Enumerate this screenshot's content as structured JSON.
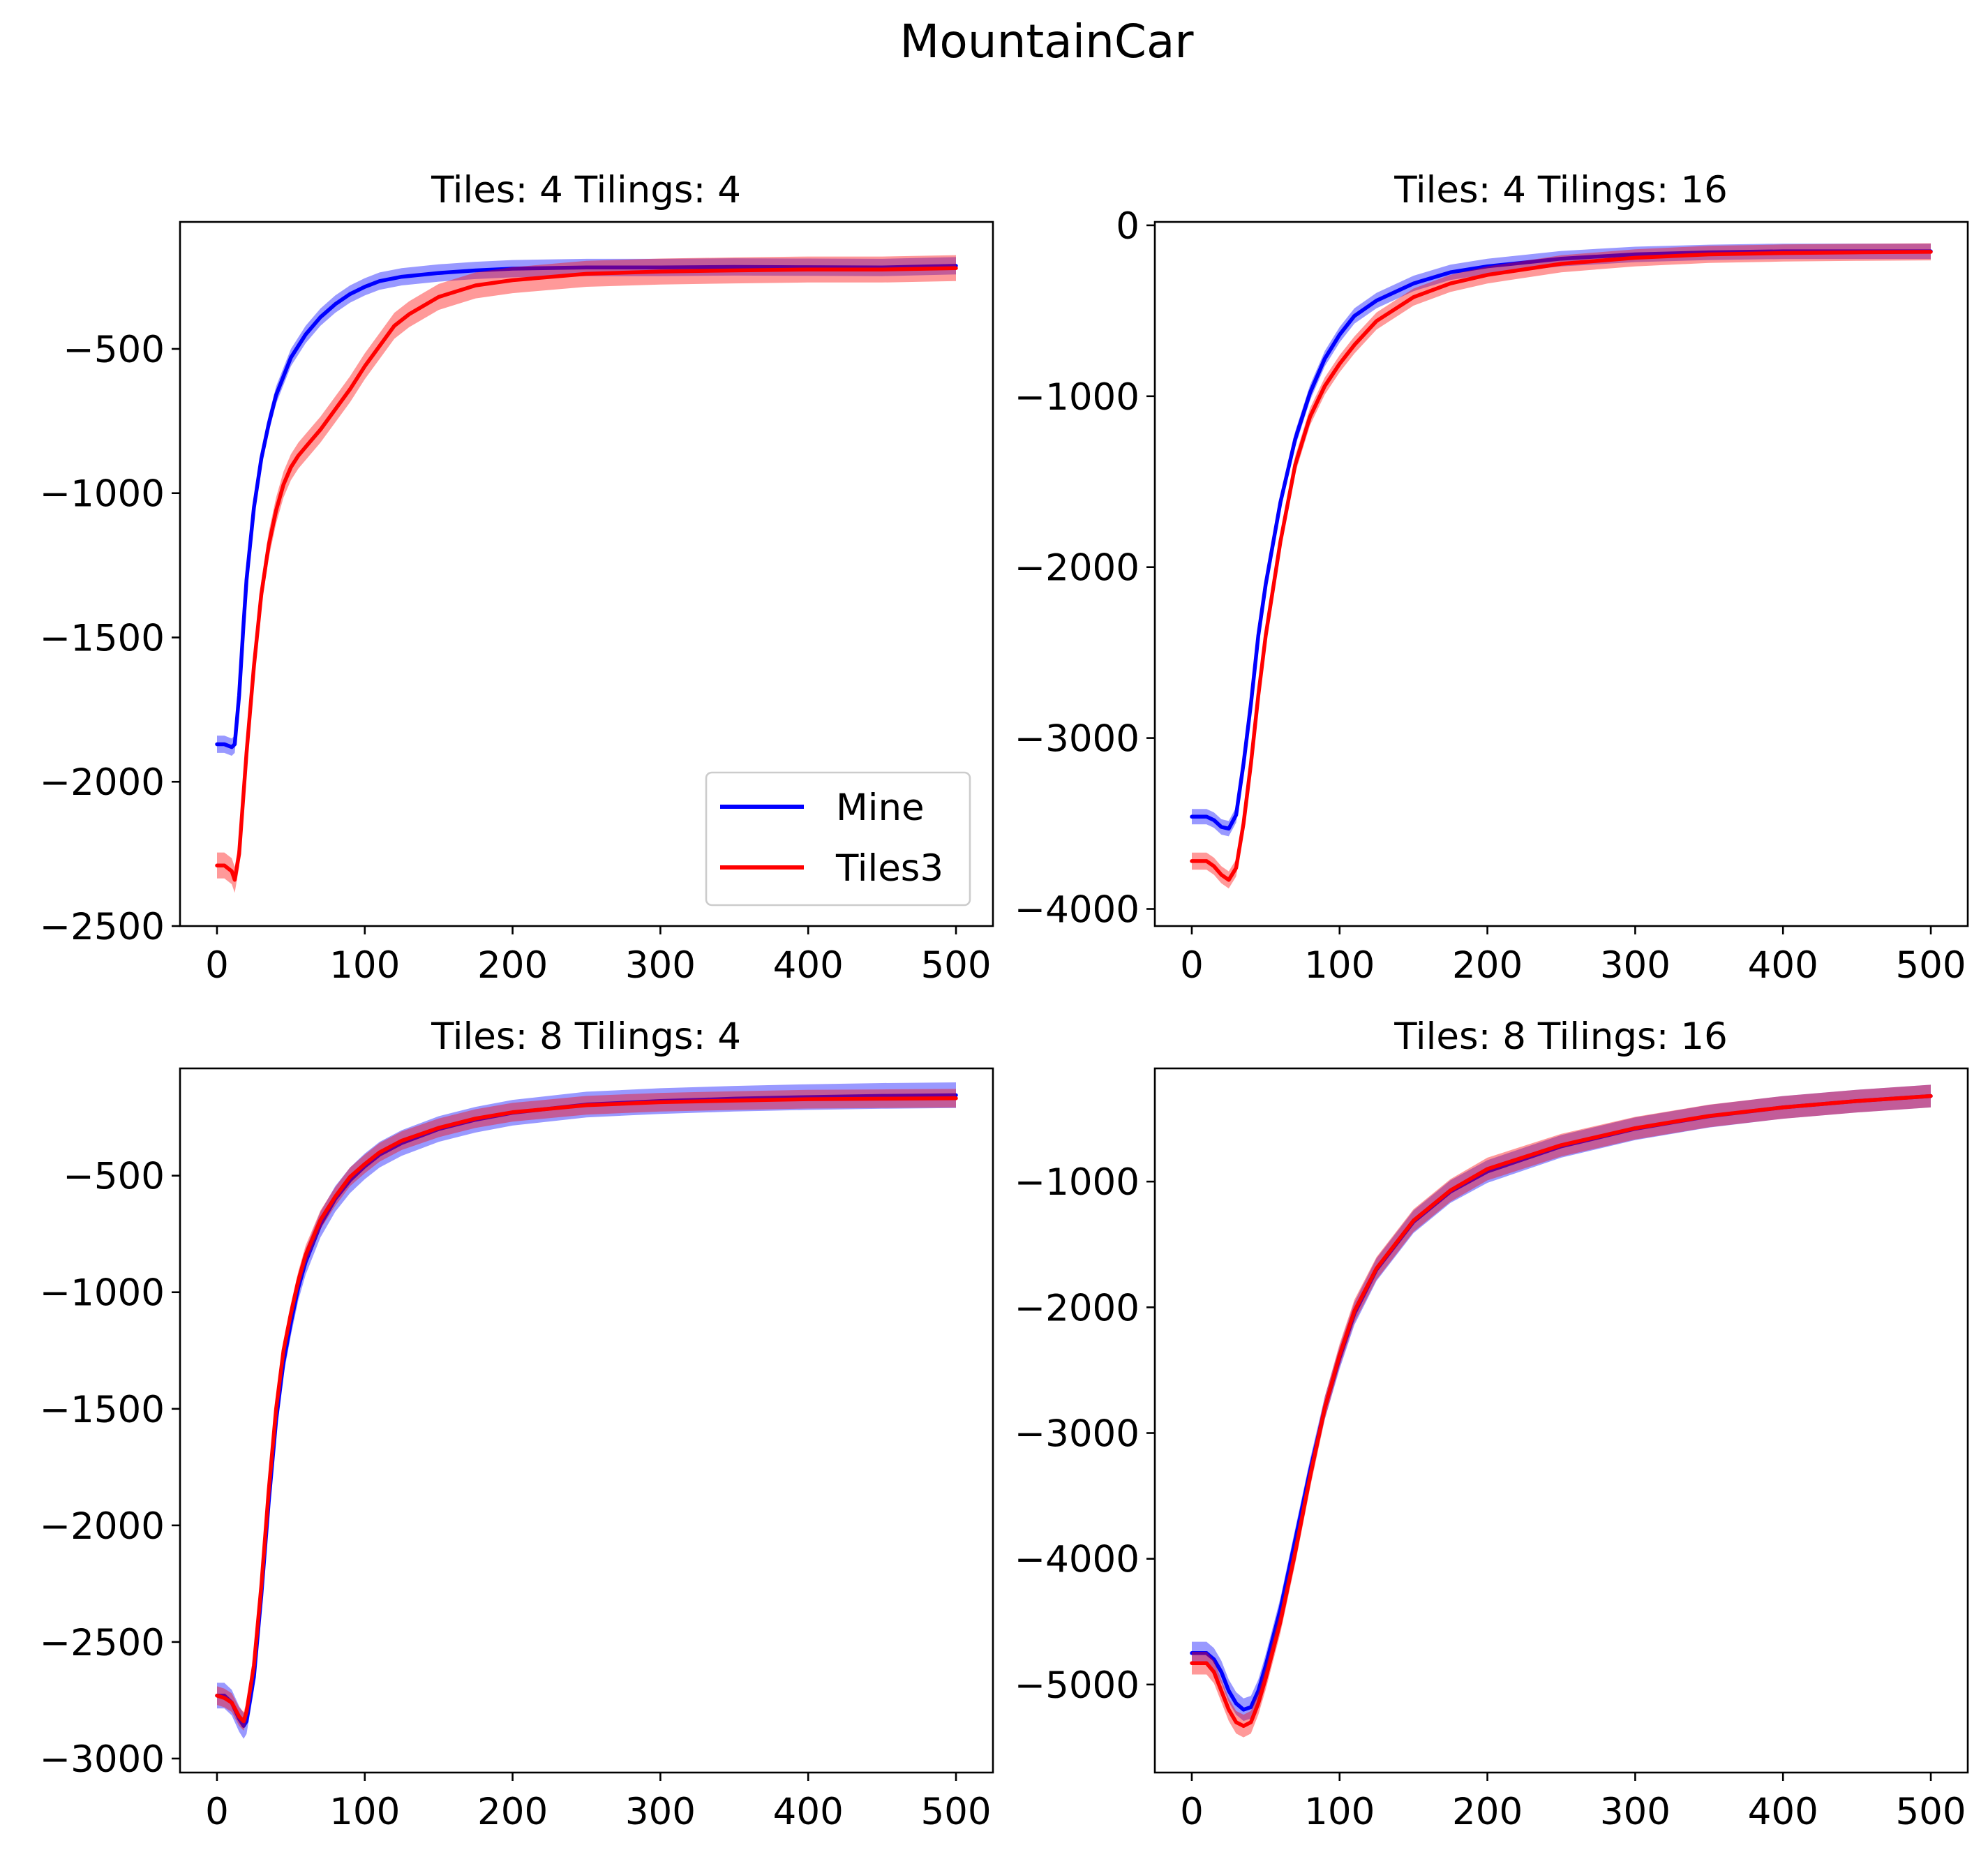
{
  "figure": {
    "title": "MountainCar"
  },
  "legend": {
    "entries": [
      {
        "label": "Mine",
        "color": "#0000ff"
      },
      {
        "label": "Tiles3",
        "color": "#ff0000"
      }
    ],
    "location": "lower-right",
    "shown_in_panel": 0
  },
  "chart_data": [
    {
      "type": "line",
      "title": "Tiles: 4 Tilings: 4",
      "xlabel": "",
      "ylabel": "",
      "xlim": [
        -25,
        525
      ],
      "ylim": [
        -2500,
        -60
      ],
      "xticks": [
        0,
        100,
        200,
        300,
        400,
        500
      ],
      "yticks": [
        -2500,
        -2000,
        -1500,
        -1000,
        -500
      ],
      "grid": false,
      "series": [
        {
          "name": "Mine",
          "color": "#0000ff",
          "band": 30,
          "x": [
            0,
            5,
            10,
            12,
            15,
            18,
            20,
            25,
            30,
            35,
            40,
            50,
            60,
            70,
            80,
            90,
            100,
            110,
            125,
            150,
            175,
            200,
            250,
            300,
            350,
            400,
            450,
            500
          ],
          "y": [
            -1870,
            -1870,
            -1880,
            -1870,
            -1700,
            -1450,
            -1300,
            -1050,
            -880,
            -760,
            -660,
            -530,
            -450,
            -390,
            -345,
            -310,
            -285,
            -265,
            -250,
            -237,
            -228,
            -222,
            -218,
            -218,
            -216,
            -217,
            -218,
            -212
          ]
        },
        {
          "name": "Tiles3",
          "color": "#ff0000",
          "band": 45,
          "x": [
            0,
            5,
            10,
            12,
            15,
            20,
            25,
            30,
            35,
            40,
            45,
            50,
            55,
            60,
            70,
            80,
            90,
            100,
            110,
            120,
            130,
            140,
            150,
            175,
            200,
            250,
            300,
            350,
            400,
            450,
            500
          ],
          "y": [
            -2290,
            -2290,
            -2310,
            -2340,
            -2250,
            -1900,
            -1600,
            -1350,
            -1180,
            -1060,
            -970,
            -910,
            -870,
            -840,
            -780,
            -710,
            -640,
            -560,
            -490,
            -420,
            -380,
            -350,
            -320,
            -280,
            -262,
            -240,
            -232,
            -228,
            -225,
            -225,
            -220
          ]
        }
      ]
    },
    {
      "type": "line",
      "title": "Tiles: 4 Tilings: 16",
      "xlabel": "",
      "ylabel": "",
      "xlim": [
        -25,
        525
      ],
      "ylim": [
        -4100,
        20
      ],
      "xticks": [
        0,
        100,
        200,
        300,
        400,
        500
      ],
      "yticks": [
        -4000,
        -3000,
        -2000,
        -1000,
        0
      ],
      "grid": false,
      "series": [
        {
          "name": "Mine",
          "color": "#0000ff",
          "band": 45,
          "x": [
            0,
            10,
            15,
            20,
            25,
            30,
            35,
            40,
            45,
            50,
            60,
            70,
            80,
            90,
            100,
            110,
            125,
            150,
            175,
            200,
            250,
            300,
            350,
            400,
            450,
            500
          ],
          "y": [
            -3460,
            -3460,
            -3480,
            -3520,
            -3530,
            -3450,
            -3150,
            -2800,
            -2400,
            -2100,
            -1620,
            -1250,
            -980,
            -780,
            -640,
            -530,
            -440,
            -340,
            -275,
            -240,
            -195,
            -170,
            -158,
            -152,
            -152,
            -152
          ]
        },
        {
          "name": "Tiles3",
          "color": "#ff0000",
          "band": 50,
          "x": [
            0,
            10,
            15,
            20,
            25,
            30,
            35,
            40,
            45,
            50,
            60,
            70,
            80,
            90,
            100,
            110,
            125,
            150,
            175,
            200,
            250,
            300,
            350,
            400,
            450,
            500
          ],
          "y": [
            -3720,
            -3720,
            -3750,
            -3800,
            -3830,
            -3760,
            -3500,
            -3150,
            -2750,
            -2400,
            -1850,
            -1400,
            -1120,
            -940,
            -810,
            -700,
            -560,
            -420,
            -340,
            -290,
            -225,
            -190,
            -170,
            -162,
            -158,
            -155
          ]
        }
      ]
    },
    {
      "type": "line",
      "title": "Tiles: 8 Tilings: 4",
      "xlabel": "",
      "ylabel": "",
      "xlim": [
        -25,
        525
      ],
      "ylim": [
        -3060,
        -40
      ],
      "xticks": [
        0,
        100,
        200,
        300,
        400,
        500
      ],
      "yticks": [
        -3000,
        -2500,
        -2000,
        -1500,
        -1000,
        -500
      ],
      "grid": false,
      "series": [
        {
          "name": "Mine",
          "color": "#0000ff",
          "band": 55,
          "x": [
            0,
            5,
            10,
            15,
            18,
            20,
            25,
            30,
            35,
            40,
            45,
            50,
            55,
            60,
            70,
            80,
            90,
            100,
            110,
            125,
            150,
            175,
            200,
            250,
            300,
            350,
            400,
            450,
            500
          ],
          "y": [
            -2730,
            -2730,
            -2760,
            -2830,
            -2860,
            -2840,
            -2650,
            -2300,
            -1900,
            -1550,
            -1300,
            -1130,
            -980,
            -870,
            -710,
            -600,
            -520,
            -460,
            -410,
            -360,
            -300,
            -260,
            -230,
            -195,
            -180,
            -170,
            -163,
            -158,
            -155
          ]
        },
        {
          "name": "Tiles3",
          "color": "#ff0000",
          "band": 40,
          "x": [
            0,
            5,
            10,
            15,
            18,
            20,
            25,
            30,
            35,
            40,
            45,
            50,
            55,
            60,
            70,
            80,
            90,
            100,
            110,
            125,
            150,
            175,
            200,
            250,
            300,
            350,
            400,
            450,
            500
          ],
          "y": [
            -2730,
            -2740,
            -2760,
            -2820,
            -2840,
            -2800,
            -2600,
            -2260,
            -1850,
            -1500,
            -1250,
            -1090,
            -950,
            -840,
            -690,
            -590,
            -505,
            -450,
            -400,
            -350,
            -295,
            -255,
            -228,
            -198,
            -185,
            -178,
            -172,
            -170,
            -168
          ]
        }
      ]
    },
    {
      "type": "line",
      "title": "Tiles: 8 Tilings: 16",
      "xlabel": "",
      "ylabel": "",
      "xlim": [
        -25,
        525
      ],
      "ylim": [
        -5700,
        -100
      ],
      "xticks": [
        0,
        100,
        200,
        300,
        400,
        500
      ],
      "yticks": [
        -5000,
        -4000,
        -3000,
        -2000,
        -1000
      ],
      "grid": false,
      "series": [
        {
          "name": "Mine",
          "color": "#0000ff",
          "band": 90,
          "x": [
            0,
            10,
            15,
            20,
            25,
            30,
            35,
            40,
            45,
            50,
            60,
            70,
            80,
            90,
            100,
            110,
            125,
            150,
            175,
            200,
            250,
            300,
            350,
            400,
            450,
            500
          ],
          "y": [
            -4750,
            -4750,
            -4800,
            -4900,
            -5050,
            -5150,
            -5200,
            -5180,
            -5050,
            -4850,
            -4400,
            -3850,
            -3300,
            -2800,
            -2400,
            -2050,
            -1700,
            -1320,
            -1080,
            -920,
            -720,
            -580,
            -480,
            -410,
            -360,
            -320
          ]
        },
        {
          "name": "Tiles3",
          "color": "#ff0000",
          "band": 90,
          "x": [
            0,
            10,
            15,
            20,
            25,
            30,
            35,
            40,
            45,
            50,
            60,
            70,
            80,
            90,
            100,
            110,
            125,
            150,
            175,
            200,
            250,
            300,
            350,
            400,
            450,
            500
          ],
          "y": [
            -4830,
            -4830,
            -4900,
            -5050,
            -5200,
            -5300,
            -5330,
            -5300,
            -5150,
            -4950,
            -4500,
            -3950,
            -3350,
            -2800,
            -2380,
            -2030,
            -1690,
            -1310,
            -1070,
            -900,
            -710,
            -575,
            -478,
            -410,
            -360,
            -320
          ]
        }
      ]
    }
  ]
}
